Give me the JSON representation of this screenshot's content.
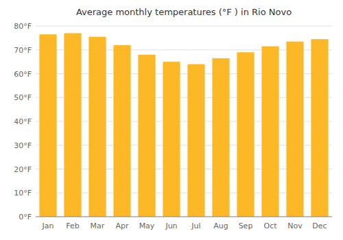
{
  "chart_data": {
    "type": "bar",
    "title": "Average monthly temperatures (°F ) in Rio Novo",
    "categories": [
      "Jan",
      "Feb",
      "Mar",
      "Apr",
      "May",
      "Jun",
      "Jul",
      "Aug",
      "Sep",
      "Oct",
      "Nov",
      "Dec"
    ],
    "values": [
      76.5,
      77.0,
      75.5,
      72.0,
      68.0,
      65.0,
      64.0,
      66.5,
      69.0,
      71.5,
      73.5,
      74.5
    ],
    "color": "#FDB827",
    "ylim": [
      0,
      80
    ],
    "yticks": [
      {
        "value": 0,
        "label": "0°F"
      },
      {
        "value": 10,
        "label": "10°F"
      },
      {
        "value": 20,
        "label": "20°F"
      },
      {
        "value": 30,
        "label": "30°F"
      },
      {
        "value": 40,
        "label": "40°F"
      },
      {
        "value": 50,
        "label": "50°F"
      },
      {
        "value": 60,
        "label": "60°F"
      },
      {
        "value": 70,
        "label": "70°F"
      },
      {
        "value": 80,
        "label": "80°F"
      }
    ],
    "grid": true
  }
}
